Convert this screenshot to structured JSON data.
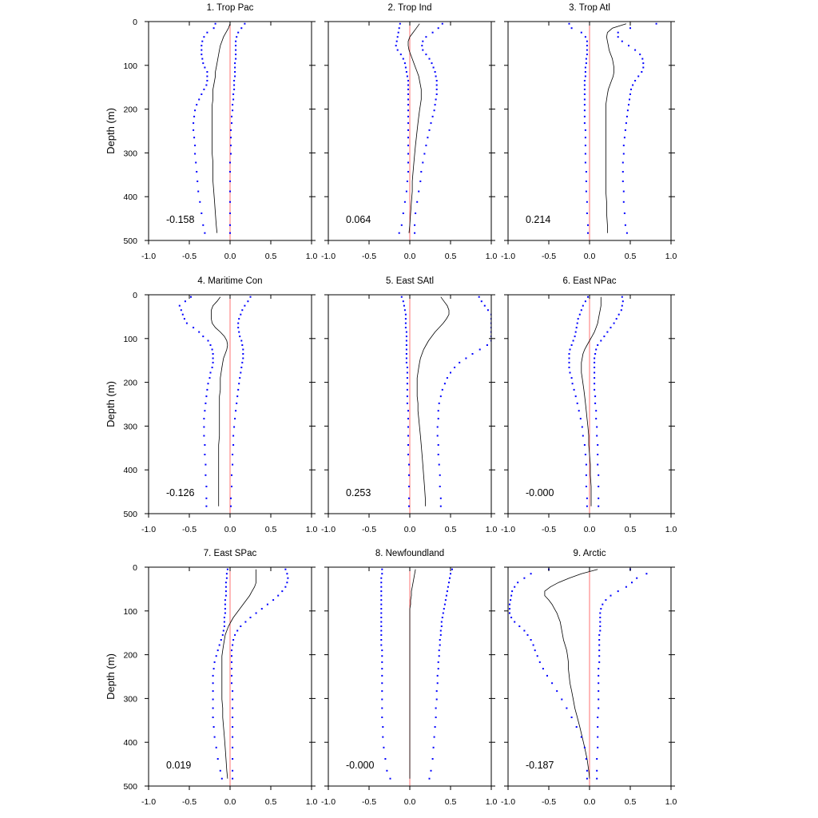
{
  "chart_data": {
    "type": "line",
    "xlim": [
      -1.0,
      1.0
    ],
    "ylim": [
      500,
      0
    ],
    "ylabel": "Depth (m)",
    "x_ticks": [
      "-1.0",
      "-0.5",
      "0.0",
      "0.5",
      "1.0"
    ],
    "y_ticks": [
      "0",
      "100",
      "200",
      "300",
      "400",
      "500"
    ],
    "colors": {
      "median": "#000000",
      "bounds": "#0000ff",
      "zero_line": "#ff7070",
      "frame": "#000000"
    },
    "depths": [
      5,
      15,
      25,
      35,
      45,
      55,
      65,
      75,
      85,
      95,
      105,
      115,
      125,
      135,
      145,
      155,
      166,
      178,
      190,
      203,
      217,
      232,
      248,
      265,
      283,
      302,
      322,
      343,
      365,
      388,
      412,
      438,
      465,
      483
    ],
    "panels": [
      {
        "title": "1. Trop Pac",
        "value_label": "-0.158",
        "median": [
          0.0,
          -0.02,
          -0.05,
          -0.08,
          -0.1,
          -0.12,
          -0.13,
          -0.14,
          -0.15,
          -0.16,
          -0.17,
          -0.18,
          -0.18,
          -0.19,
          -0.2,
          -0.21,
          -0.21,
          -0.21,
          -0.22,
          -0.22,
          -0.22,
          -0.22,
          -0.22,
          -0.22,
          -0.22,
          -0.22,
          -0.21,
          -0.21,
          -0.21,
          -0.2,
          -0.19,
          -0.18,
          -0.17,
          -0.16
        ],
        "lower": [
          -0.18,
          -0.2,
          -0.28,
          -0.32,
          -0.34,
          -0.35,
          -0.35,
          -0.35,
          -0.34,
          -0.33,
          -0.31,
          -0.28,
          -0.28,
          -0.28,
          -0.29,
          -0.32,
          -0.35,
          -0.38,
          -0.41,
          -0.43,
          -0.44,
          -0.45,
          -0.45,
          -0.44,
          -0.43,
          -0.43,
          -0.42,
          -0.41,
          -0.4,
          -0.39,
          -0.37,
          -0.35,
          -0.33,
          -0.31
        ],
        "upper": [
          0.18,
          0.14,
          0.1,
          0.08,
          0.07,
          0.07,
          0.07,
          0.07,
          0.07,
          0.06,
          0.06,
          0.06,
          0.06,
          0.05,
          0.05,
          0.05,
          0.04,
          0.04,
          0.03,
          0.03,
          0.02,
          0.02,
          0.01,
          0.01,
          0.01,
          0.01,
          0.0,
          0.0,
          0.0,
          0.0,
          0.0,
          0.0,
          0.0,
          0.0
        ]
      },
      {
        "title": "2. Trop Ind",
        "value_label": "0.064",
        "median": [
          0.12,
          0.08,
          0.04,
          0.0,
          -0.02,
          -0.02,
          -0.01,
          0.01,
          0.03,
          0.05,
          0.07,
          0.09,
          0.11,
          0.12,
          0.13,
          0.14,
          0.14,
          0.14,
          0.13,
          0.12,
          0.11,
          0.1,
          0.09,
          0.08,
          0.07,
          0.06,
          0.05,
          0.04,
          0.03,
          0.03,
          0.02,
          0.01,
          0.0,
          -0.01
        ],
        "lower": [
          -0.12,
          -0.13,
          -0.14,
          -0.15,
          -0.16,
          -0.17,
          -0.15,
          -0.11,
          -0.08,
          -0.06,
          -0.05,
          -0.04,
          -0.03,
          -0.02,
          -0.02,
          -0.02,
          -0.02,
          -0.02,
          -0.02,
          -0.02,
          -0.02,
          -0.02,
          -0.02,
          -0.02,
          -0.02,
          -0.02,
          -0.02,
          -0.02,
          -0.03,
          -0.04,
          -0.06,
          -0.08,
          -0.1,
          -0.13
        ],
        "upper": [
          0.4,
          0.35,
          0.28,
          0.2,
          0.16,
          0.15,
          0.16,
          0.2,
          0.24,
          0.27,
          0.29,
          0.31,
          0.32,
          0.33,
          0.33,
          0.33,
          0.33,
          0.32,
          0.31,
          0.3,
          0.28,
          0.26,
          0.24,
          0.22,
          0.2,
          0.18,
          0.16,
          0.14,
          0.13,
          0.11,
          0.09,
          0.07,
          0.06,
          0.06
        ]
      },
      {
        "title": "3. Trop Atl",
        "value_label": "0.214",
        "median": [
          0.45,
          0.28,
          0.22,
          0.21,
          0.22,
          0.23,
          0.24,
          0.26,
          0.28,
          0.29,
          0.3,
          0.3,
          0.29,
          0.27,
          0.25,
          0.23,
          0.22,
          0.21,
          0.2,
          0.2,
          0.2,
          0.2,
          0.2,
          0.2,
          0.2,
          0.2,
          0.2,
          0.2,
          0.2,
          0.2,
          0.21,
          0.21,
          0.22,
          0.22
        ],
        "lower": [
          -0.25,
          -0.22,
          -0.1,
          -0.05,
          -0.03,
          -0.03,
          -0.03,
          -0.03,
          -0.04,
          -0.04,
          -0.05,
          -0.05,
          -0.05,
          -0.06,
          -0.06,
          -0.06,
          -0.06,
          -0.06,
          -0.06,
          -0.06,
          -0.06,
          -0.06,
          -0.05,
          -0.05,
          -0.05,
          -0.05,
          -0.05,
          -0.04,
          -0.04,
          -0.04,
          -0.03,
          -0.03,
          -0.02,
          -0.02
        ],
        "upper": [
          0.82,
          0.5,
          0.35,
          0.35,
          0.4,
          0.48,
          0.56,
          0.62,
          0.65,
          0.66,
          0.66,
          0.64,
          0.6,
          0.56,
          0.53,
          0.51,
          0.5,
          0.49,
          0.48,
          0.47,
          0.46,
          0.45,
          0.44,
          0.43,
          0.42,
          0.42,
          0.41,
          0.41,
          0.41,
          0.42,
          0.42,
          0.43,
          0.44,
          0.46
        ]
      },
      {
        "title": "4. Maritime Con",
        "value_label": "-0.126",
        "median": [
          -0.12,
          -0.16,
          -0.21,
          -0.23,
          -0.23,
          -0.23,
          -0.22,
          -0.18,
          -0.12,
          -0.07,
          -0.04,
          -0.03,
          -0.04,
          -0.06,
          -0.08,
          -0.09,
          -0.1,
          -0.11,
          -0.12,
          -0.12,
          -0.12,
          -0.13,
          -0.13,
          -0.13,
          -0.13,
          -0.13,
          -0.13,
          -0.14,
          -0.14,
          -0.14,
          -0.14,
          -0.14,
          -0.14,
          -0.14
        ],
        "lower": [
          -0.48,
          -0.55,
          -0.62,
          -0.6,
          -0.58,
          -0.56,
          -0.53,
          -0.45,
          -0.38,
          -0.33,
          -0.27,
          -0.24,
          -0.22,
          -0.21,
          -0.21,
          -0.21,
          -0.22,
          -0.24,
          -0.25,
          -0.27,
          -0.28,
          -0.29,
          -0.3,
          -0.31,
          -0.32,
          -0.32,
          -0.32,
          -0.31,
          -0.31,
          -0.3,
          -0.3,
          -0.29,
          -0.29,
          -0.29
        ],
        "upper": [
          0.25,
          0.22,
          0.18,
          0.15,
          0.13,
          0.11,
          0.1,
          0.1,
          0.11,
          0.12,
          0.14,
          0.15,
          0.16,
          0.16,
          0.16,
          0.15,
          0.14,
          0.13,
          0.12,
          0.11,
          0.1,
          0.09,
          0.08,
          0.07,
          0.06,
          0.05,
          0.04,
          0.04,
          0.03,
          0.03,
          0.02,
          0.02,
          0.01,
          0.01
        ],
        "zero_line_visible": true
      },
      {
        "title": "5. East SAtl",
        "value_label": "0.253",
        "median": [
          0.38,
          0.42,
          0.46,
          0.48,
          0.48,
          0.45,
          0.41,
          0.36,
          0.31,
          0.27,
          0.23,
          0.2,
          0.17,
          0.15,
          0.13,
          0.12,
          0.11,
          0.1,
          0.09,
          0.09,
          0.09,
          0.09,
          0.1,
          0.1,
          0.11,
          0.12,
          0.13,
          0.14,
          0.15,
          0.16,
          0.17,
          0.18,
          0.19,
          0.19
        ],
        "lower": [
          -0.1,
          -0.08,
          -0.07,
          -0.06,
          -0.05,
          -0.05,
          -0.05,
          -0.05,
          -0.04,
          -0.04,
          -0.04,
          -0.04,
          -0.04,
          -0.04,
          -0.04,
          -0.04,
          -0.03,
          -0.03,
          -0.03,
          -0.03,
          -0.03,
          -0.03,
          -0.03,
          -0.02,
          -0.02,
          -0.02,
          -0.02,
          -0.02,
          -0.02,
          -0.01,
          -0.01,
          -0.01,
          -0.01,
          -0.01
        ],
        "upper": [
          0.85,
          0.88,
          0.92,
          0.96,
          1.0,
          1.0,
          1.0,
          1.0,
          1.0,
          1.0,
          1.0,
          0.95,
          0.86,
          0.77,
          0.69,
          0.61,
          0.55,
          0.5,
          0.46,
          0.43,
          0.4,
          0.38,
          0.36,
          0.35,
          0.35,
          0.34,
          0.34,
          0.35,
          0.35,
          0.36,
          0.37,
          0.37,
          0.38,
          0.38
        ]
      },
      {
        "title": "6. East NPac",
        "value_label": "-0.000",
        "median": [
          0.14,
          0.14,
          0.14,
          0.13,
          0.12,
          0.11,
          0.1,
          0.08,
          0.06,
          0.03,
          0.0,
          -0.03,
          -0.06,
          -0.08,
          -0.09,
          -0.1,
          -0.1,
          -0.1,
          -0.09,
          -0.08,
          -0.07,
          -0.06,
          -0.05,
          -0.04,
          -0.03,
          -0.02,
          -0.01,
          -0.01,
          0.0,
          0.01,
          0.01,
          0.02,
          0.02,
          0.02
        ],
        "lower": [
          -0.02,
          -0.05,
          -0.08,
          -0.1,
          -0.12,
          -0.14,
          -0.15,
          -0.16,
          -0.17,
          -0.18,
          -0.2,
          -0.22,
          -0.24,
          -0.25,
          -0.25,
          -0.25,
          -0.25,
          -0.24,
          -0.22,
          -0.21,
          -0.19,
          -0.17,
          -0.15,
          -0.13,
          -0.11,
          -0.09,
          -0.08,
          -0.06,
          -0.05,
          -0.04,
          -0.04,
          -0.04,
          -0.03,
          -0.03
        ],
        "upper": [
          0.4,
          0.41,
          0.4,
          0.39,
          0.36,
          0.33,
          0.3,
          0.26,
          0.22,
          0.18,
          0.14,
          0.1,
          0.08,
          0.07,
          0.06,
          0.06,
          0.06,
          0.06,
          0.06,
          0.06,
          0.06,
          0.07,
          0.07,
          0.08,
          0.08,
          0.09,
          0.09,
          0.1,
          0.1,
          0.1,
          0.11,
          0.11,
          0.11,
          0.11
        ]
      },
      {
        "title": "7. East SPac",
        "value_label": "0.019",
        "median": [
          0.32,
          0.32,
          0.32,
          0.32,
          0.3,
          0.27,
          0.24,
          0.2,
          0.16,
          0.12,
          0.08,
          0.04,
          0.01,
          -0.02,
          -0.04,
          -0.06,
          -0.07,
          -0.08,
          -0.09,
          -0.1,
          -0.1,
          -0.1,
          -0.1,
          -0.1,
          -0.1,
          -0.1,
          -0.09,
          -0.09,
          -0.08,
          -0.07,
          -0.06,
          -0.05,
          -0.04,
          -0.03
        ],
        "lower": [
          -0.03,
          -0.04,
          -0.04,
          -0.05,
          -0.05,
          -0.05,
          -0.05,
          -0.06,
          -0.06,
          -0.06,
          -0.06,
          -0.07,
          -0.07,
          -0.07,
          -0.08,
          -0.09,
          -0.11,
          -0.13,
          -0.15,
          -0.17,
          -0.19,
          -0.2,
          -0.21,
          -0.21,
          -0.21,
          -0.21,
          -0.21,
          -0.21,
          -0.2,
          -0.19,
          -0.17,
          -0.15,
          -0.12,
          -0.1
        ],
        "upper": [
          0.68,
          0.7,
          0.71,
          0.7,
          0.68,
          0.64,
          0.59,
          0.53,
          0.46,
          0.39,
          0.32,
          0.25,
          0.19,
          0.13,
          0.09,
          0.06,
          0.04,
          0.03,
          0.02,
          0.02,
          0.02,
          0.02,
          0.02,
          0.02,
          0.03,
          0.03,
          0.03,
          0.03,
          0.03,
          0.03,
          0.03,
          0.03,
          0.03,
          0.03
        ]
      },
      {
        "title": "8. Newfoundland",
        "value_label": "-0.000",
        "median": [
          0.07,
          0.06,
          0.05,
          0.04,
          0.03,
          0.02,
          0.02,
          0.01,
          0.01,
          0.0,
          0.0,
          0.0,
          0.0,
          0.0,
          0.0,
          0.0,
          0.0,
          0.0,
          0.0,
          0.0,
          0.0,
          0.0,
          0.0,
          0.0,
          0.0,
          0.0,
          0.0,
          0.0,
          0.0,
          0.0,
          0.0,
          0.0,
          0.0,
          0.0
        ],
        "lower": [
          -0.34,
          -0.34,
          -0.35,
          -0.35,
          -0.35,
          -0.35,
          -0.35,
          -0.35,
          -0.35,
          -0.35,
          -0.35,
          -0.35,
          -0.35,
          -0.35,
          -0.35,
          -0.35,
          -0.35,
          -0.35,
          -0.34,
          -0.34,
          -0.34,
          -0.34,
          -0.34,
          -0.34,
          -0.34,
          -0.34,
          -0.34,
          -0.34,
          -0.33,
          -0.33,
          -0.32,
          -0.3,
          -0.28,
          -0.24
        ],
        "upper": [
          0.52,
          0.5,
          0.49,
          0.48,
          0.47,
          0.46,
          0.45,
          0.44,
          0.43,
          0.42,
          0.41,
          0.4,
          0.39,
          0.39,
          0.38,
          0.38,
          0.37,
          0.37,
          0.36,
          0.36,
          0.35,
          0.35,
          0.34,
          0.34,
          0.33,
          0.33,
          0.32,
          0.32,
          0.31,
          0.3,
          0.29,
          0.28,
          0.26,
          0.24
        ]
      },
      {
        "title": "9. Arctic",
        "value_label": "-0.187",
        "median": [
          0.1,
          -0.1,
          -0.25,
          -0.38,
          -0.48,
          -0.55,
          -0.55,
          -0.5,
          -0.46,
          -0.43,
          -0.4,
          -0.38,
          -0.36,
          -0.35,
          -0.34,
          -0.33,
          -0.32,
          -0.3,
          -0.28,
          -0.27,
          -0.26,
          -0.26,
          -0.25,
          -0.24,
          -0.22,
          -0.2,
          -0.18,
          -0.15,
          -0.12,
          -0.09,
          -0.06,
          -0.03,
          -0.01,
          0.0
        ],
        "lower": [
          -0.5,
          -0.72,
          -0.8,
          -0.88,
          -0.92,
          -0.95,
          -0.96,
          -0.97,
          -0.98,
          -0.98,
          -0.98,
          -0.96,
          -0.92,
          -0.86,
          -0.8,
          -0.76,
          -0.72,
          -0.69,
          -0.67,
          -0.64,
          -0.61,
          -0.57,
          -0.52,
          -0.46,
          -0.4,
          -0.34,
          -0.28,
          -0.22,
          -0.16,
          -0.1,
          -0.06,
          -0.04,
          -0.03,
          -0.03
        ],
        "upper": [
          0.5,
          0.7,
          0.58,
          0.52,
          0.45,
          0.35,
          0.26,
          0.2,
          0.16,
          0.14,
          0.13,
          0.13,
          0.13,
          0.13,
          0.13,
          0.12,
          0.12,
          0.12,
          0.12,
          0.12,
          0.12,
          0.11,
          0.11,
          0.11,
          0.11,
          0.11,
          0.11,
          0.1,
          0.1,
          0.1,
          0.1,
          0.09,
          0.09,
          0.09
        ]
      }
    ]
  }
}
